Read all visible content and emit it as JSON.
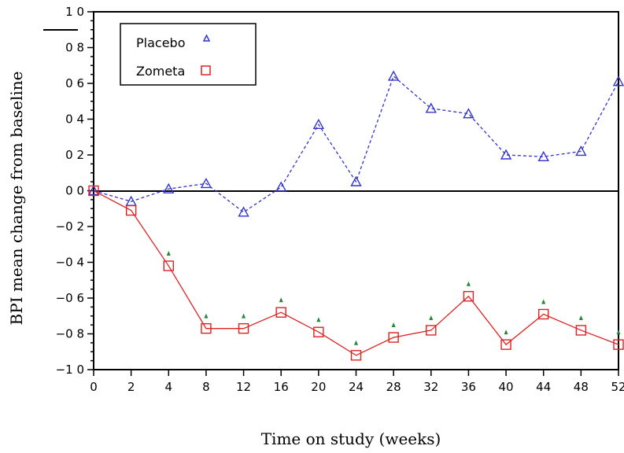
{
  "chart_data": {
    "type": "line",
    "xlabel": "Time on study (weeks)",
    "ylabel": "BPI mean change from baseline",
    "categories": [
      "0",
      "2",
      "4",
      "8",
      "12",
      "16",
      "20",
      "24",
      "28",
      "32",
      "36",
      "40",
      "44",
      "48",
      "52"
    ],
    "ylim": [
      -1.0,
      1.0
    ],
    "yticks": [
      {
        "value": 1.0,
        "label": "1 0"
      },
      {
        "value": 0.8,
        "label": "0 8"
      },
      {
        "value": 0.6,
        "label": "0 6"
      },
      {
        "value": 0.4,
        "label": "0 4"
      },
      {
        "value": 0.2,
        "label": "0 2"
      },
      {
        "value": 0.0,
        "label": "0 0"
      },
      {
        "value": -0.2,
        "label": "−0 2"
      },
      {
        "value": -0.4,
        "label": "−0 4"
      },
      {
        "value": -0.6,
        "label": "−0 6"
      },
      {
        "value": -0.8,
        "label": "−0 8"
      },
      {
        "value": -1.0,
        "label": "−1 0"
      }
    ],
    "legend_position": "top-left",
    "series": [
      {
        "name": "Placebo",
        "marker": "triangle",
        "line_style": "dashed",
        "color": "#3333cc",
        "values": [
          0.0,
          -0.06,
          0.01,
          0.04,
          -0.12,
          0.02,
          0.37,
          0.05,
          0.64,
          0.46,
          0.43,
          0.2,
          0.19,
          0.22,
          0.61
        ]
      },
      {
        "name": "Zometa",
        "marker": "square",
        "line_style": "solid",
        "color": "#dd2222",
        "values": [
          0.0,
          -0.11,
          -0.42,
          -0.77,
          -0.77,
          -0.68,
          -0.79,
          -0.92,
          -0.82,
          -0.78,
          -0.59,
          -0.86,
          -0.69,
          -0.78,
          -0.86
        ],
        "significance_marker_color": "#228833",
        "significant": [
          false,
          false,
          true,
          true,
          true,
          true,
          true,
          true,
          true,
          true,
          true,
          true,
          true,
          true,
          true
        ]
      }
    ]
  }
}
